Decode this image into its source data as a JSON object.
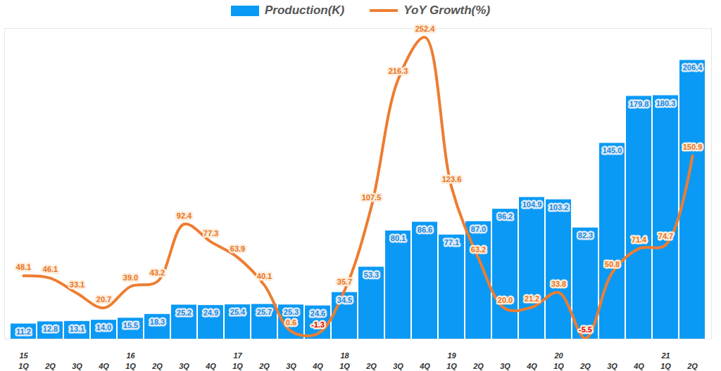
{
  "chart_data": {
    "type": "bar",
    "categories": [
      "15\n1Q",
      "2Q",
      "3Q",
      "4Q",
      "16\n1Q",
      "2Q",
      "3Q",
      "4Q",
      "17\n1Q",
      "2Q",
      "3Q",
      "4Q",
      "18\n1Q",
      "2Q",
      "3Q",
      "4Q",
      "19\n1Q",
      "2Q",
      "3Q",
      "4Q",
      "20\n1Q",
      "2Q",
      "3Q",
      "4Q",
      "21\n1Q",
      "2Q"
    ],
    "series": [
      {
        "name": "Production(K)",
        "type": "bar",
        "color": "#0a9af5",
        "values": [
          11.2,
          12.8,
          13.1,
          14.0,
          15.5,
          18.3,
          25.2,
          24.9,
          25.4,
          25.7,
          25.3,
          24.6,
          34.5,
          53.3,
          80.1,
          86.6,
          77.1,
          87.0,
          96.2,
          104.9,
          103.2,
          82.3,
          145.0,
          179.8,
          180.3,
          206.4
        ],
        "value_labels": [
          "11.2",
          "12.8",
          "13.1",
          "14.0",
          "15.5",
          "18.3",
          "25.2",
          "24.9",
          "25.4",
          "25.7",
          "25.3",
          "24.6",
          "34.5",
          "53.3",
          "80.1",
          "86.6",
          "77.1",
          "87.0",
          "96.2",
          "104.9",
          "103.2",
          "82.3",
          "145.0",
          "179.8",
          "180.3",
          "206.4"
        ]
      },
      {
        "name": "YoY Growth(%)",
        "type": "line",
        "axis": "y2",
        "color": "#ed7d31",
        "line_style": "smooth",
        "values": [
          48.1,
          46.1,
          33.1,
          20.7,
          39.0,
          43.2,
          92.4,
          77.3,
          63.9,
          40.1,
          0.6,
          -1.3,
          35.7,
          107.5,
          216.3,
          252.4,
          123.6,
          63.2,
          20.0,
          21.2,
          33.8,
          -5.5,
          50.8,
          71.4,
          74.7,
          150.9
        ],
        "value_labels": [
          "48.1",
          "46.1",
          "33.1",
          "20.7",
          "39.0",
          "43.2",
          "92.4",
          "77.3",
          "63.9",
          "40.1",
          "0.6",
          "-1.3",
          "35.7",
          "107.5",
          "216.3",
          "252.4",
          "123.6",
          "63.2",
          "20.0",
          "21.2",
          "33.8",
          "-5.5",
          "50.8",
          "71.4",
          "74.7",
          "150.9"
        ]
      }
    ],
    "ylim": [
      0,
      230
    ],
    "y2lim": [
      -6,
      260
    ],
    "data_labels": true,
    "tick_labels": "x",
    "legend": "top"
  }
}
